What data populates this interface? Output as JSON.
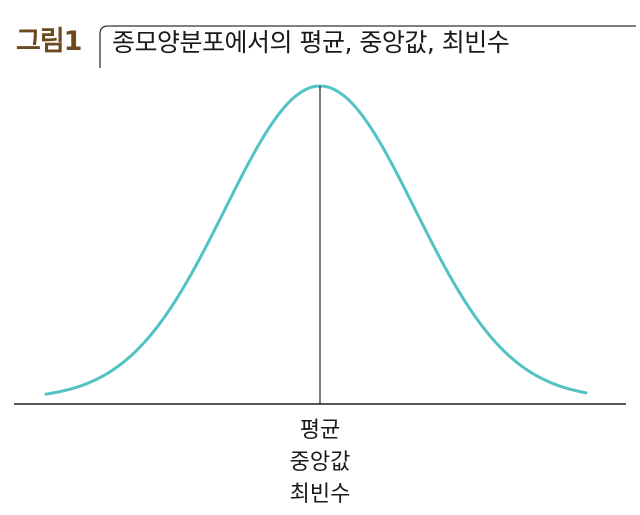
{
  "header": {
    "figure_label": "그림1",
    "title": "종모양분포에서의 평균, 중앙값, 최빈수"
  },
  "center_labels": [
    "평균",
    "중앙값",
    "최빈수"
  ],
  "colors": {
    "figure_label": "#6b4a1f",
    "curve": "#52c2c2",
    "axis": "#222222",
    "frame": "#333333"
  }
}
